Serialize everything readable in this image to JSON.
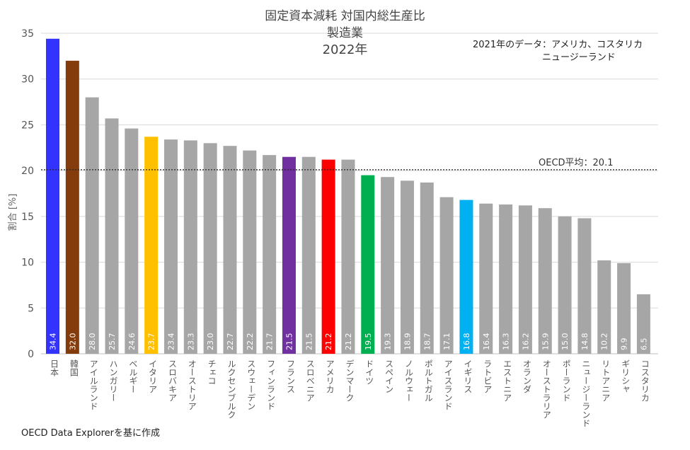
{
  "chart_data": {
    "type": "bar",
    "title": "固定資本減耗 対国内総生産比",
    "subtitle": "製造業",
    "year_label": "2022年",
    "xlabel": "",
    "ylabel": "割合 [%]",
    "ylim": [
      0,
      35
    ],
    "yticks": [
      0,
      5,
      10,
      15,
      20,
      25,
      30,
      35
    ],
    "grid": true,
    "categories": [
      "日本",
      "韓国",
      "アイルランド",
      "ハンガリー",
      "ベルギー",
      "イタリア",
      "スロバキア",
      "オーストリア",
      "チェコ",
      "ルクセンブルク",
      "スウェーデン",
      "フィンランド",
      "フランス",
      "スロベニア",
      "アメリカ",
      "デンマーク",
      "ドイツ",
      "スペイン",
      "ノルウェー",
      "ポルトガル",
      "アイスランド",
      "イギリス",
      "ラトビア",
      "エストニア",
      "オランダ",
      "オーストラリア",
      "ポーランド",
      "ニュージーランド",
      "リトアニア",
      "ギリシャ",
      "コスタリカ"
    ],
    "values": [
      34.4,
      32.0,
      28.0,
      25.7,
      24.6,
      23.7,
      23.4,
      23.3,
      23.0,
      22.7,
      22.2,
      21.7,
      21.5,
      21.5,
      21.2,
      21.2,
      19.5,
      19.3,
      18.9,
      18.7,
      17.1,
      16.8,
      16.4,
      16.3,
      16.2,
      15.9,
      15.0,
      14.8,
      10.2,
      9.9,
      6.5
    ],
    "value_labels": [
      "34.4",
      "32.0",
      "28.0",
      "25.7",
      "24.6",
      "23.7",
      "23.4",
      "23.3",
      "23.0",
      "22.7",
      "22.2",
      "21.7",
      "21.5",
      "21.5",
      "21.2",
      "21.2",
      "19.5",
      "19.3",
      "18.9",
      "18.7",
      "17.1",
      "16.8",
      "16.4",
      "16.3",
      "16.2",
      "15.9",
      "15.0",
      "14.8",
      "10.2",
      "9.9",
      "6.5"
    ],
    "colors": [
      "#3333ff",
      "#843c0c",
      "#a6a6a6",
      "#a6a6a6",
      "#a6a6a6",
      "#ffc000",
      "#a6a6a6",
      "#a6a6a6",
      "#a6a6a6",
      "#a6a6a6",
      "#a6a6a6",
      "#a6a6a6",
      "#7030a0",
      "#a6a6a6",
      "#ff0000",
      "#a6a6a6",
      "#00b050",
      "#a6a6a6",
      "#a6a6a6",
      "#a6a6a6",
      "#a6a6a6",
      "#00b0f0",
      "#a6a6a6",
      "#a6a6a6",
      "#a6a6a6",
      "#a6a6a6",
      "#a6a6a6",
      "#a6a6a6",
      "#a6a6a6",
      "#a6a6a6",
      "#a6a6a6"
    ],
    "reference_line": {
      "label": "OECD平均：20.1",
      "value": 20.1,
      "style": "dotted"
    },
    "annotations": [
      "2021年のデータ：アメリカ、コスタリカ",
      "ニュージーランド"
    ],
    "source": "OECD Data Explorerを基に作成"
  }
}
